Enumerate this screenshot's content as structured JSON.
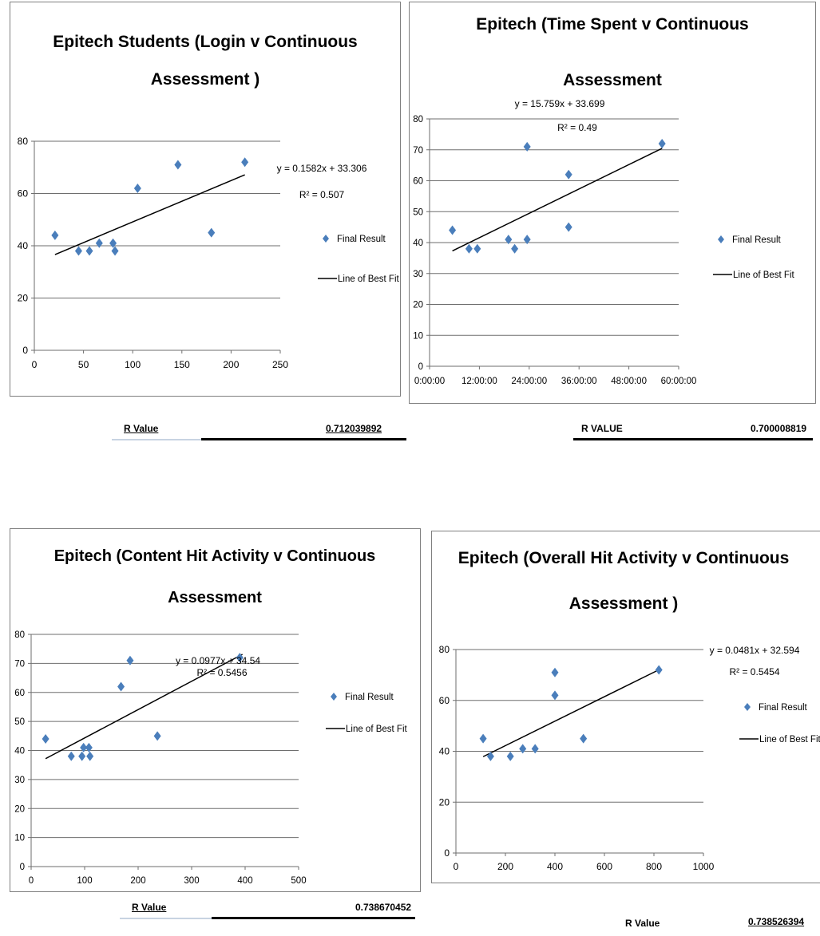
{
  "colors": {
    "marker": "#4a7ebb",
    "line": "#000000",
    "grid": "#6e6e6e"
  },
  "chart_data": [
    {
      "type": "scatter",
      "title": [
        "Epitech Students (Login v  Continuous",
        "Assessment )"
      ],
      "xlim": [
        0,
        250
      ],
      "ylim": [
        0,
        80
      ],
      "x_ticks": [
        0,
        50,
        100,
        150,
        200,
        250
      ],
      "x_tick_labels": [
        "0",
        "50",
        "100",
        "150",
        "200",
        "250"
      ],
      "y_ticks": [
        0,
        20,
        40,
        60,
        80
      ],
      "y_tick_labels": [
        "0",
        "20",
        "40",
        "60",
        "80"
      ],
      "grid": true,
      "series": [
        {
          "name": "Final Result",
          "points": [
            [
              21,
              44
            ],
            [
              45,
              38
            ],
            [
              56,
              38
            ],
            [
              66,
              41
            ],
            [
              80,
              41
            ],
            [
              82,
              38
            ],
            [
              105,
              62
            ],
            [
              146,
              71
            ],
            [
              180,
              45
            ],
            [
              214,
              72
            ]
          ]
        },
        {
          "name": "Line of Best Fit",
          "slope": 0.1582,
          "intercept": 33.306,
          "x_range": [
            21,
            214
          ]
        }
      ],
      "equation": "y = 0.1582x + 33.306",
      "r_squared": "R² = 0.507",
      "r_label": "R Value",
      "r_value": "0.712039892"
    },
    {
      "type": "scatter",
      "title": [
        "Epitech (Time Spent v Continuous",
        "Assessment"
      ],
      "xlim": [
        0,
        60
      ],
      "ylim": [
        0,
        80
      ],
      "x_ticks": [
        0,
        12,
        24,
        36,
        48,
        60
      ],
      "x_tick_labels": [
        "0:00:00",
        "12:00:00",
        "24:00:00",
        "36:00:00",
        "48:00:00",
        "60:00:00"
      ],
      "y_ticks": [
        0,
        10,
        20,
        30,
        40,
        50,
        60,
        70,
        80
      ],
      "y_tick_labels": [
        "0",
        "10",
        "20",
        "30",
        "40",
        "50",
        "60",
        "70",
        "80"
      ],
      "grid": true,
      "series": [
        {
          "name": "Final Result",
          "points": [
            [
              5.5,
              44
            ],
            [
              9.5,
              38
            ],
            [
              11.5,
              38
            ],
            [
              19,
              41
            ],
            [
              20.5,
              38
            ],
            [
              23.5,
              41
            ],
            [
              23.5,
              71
            ],
            [
              33.5,
              62
            ],
            [
              33.5,
              45
            ],
            [
              56,
              72
            ]
          ]
        },
        {
          "name": "Line of Best Fit",
          "slope": 0.6566,
          "intercept": 33.699,
          "x_range": [
            5.5,
            56
          ]
        }
      ],
      "equation": "y = 15.759x + 33.699",
      "r_squared": "R² = 0.49",
      "r_label": "R VALUE",
      "r_value": "0.700008819"
    },
    {
      "type": "scatter",
      "title": [
        "Epitech (Content Hit Activity v  Continuous",
        "Assessment"
      ],
      "xlim": [
        0,
        500
      ],
      "ylim": [
        0,
        80
      ],
      "x_ticks": [
        0,
        100,
        200,
        300,
        400,
        500
      ],
      "x_tick_labels": [
        "0",
        "100",
        "200",
        "300",
        "400",
        "500"
      ],
      "y_ticks": [
        0,
        10,
        20,
        30,
        40,
        50,
        60,
        70,
        80
      ],
      "y_tick_labels": [
        "0",
        "10",
        "20",
        "30",
        "40",
        "50",
        "60",
        "70",
        "80"
      ],
      "grid": true,
      "series": [
        {
          "name": "Final Result",
          "points": [
            [
              27,
              44
            ],
            [
              75,
              38
            ],
            [
              95,
              38
            ],
            [
              98,
              41
            ],
            [
              108,
              41
            ],
            [
              110,
              38
            ],
            [
              168,
              62
            ],
            [
              185,
              71
            ],
            [
              236,
              45
            ],
            [
              390,
              72
            ]
          ]
        },
        {
          "name": "Line of Best Fit",
          "slope": 0.0977,
          "intercept": 34.54,
          "x_range": [
            27,
            395
          ]
        }
      ],
      "equation": "y = 0.0977x + 34.54",
      "r_squared": "R² = 0.5456",
      "r_label": "R Value",
      "r_value": "0.738670452"
    },
    {
      "type": "scatter",
      "title": [
        "Epitech (Overall Hit Activity v  Continuous",
        "Assessment )"
      ],
      "xlim": [
        0,
        1000
      ],
      "ylim": [
        0,
        80
      ],
      "x_ticks": [
        0,
        200,
        400,
        600,
        800,
        1000
      ],
      "x_tick_labels": [
        "0",
        "200",
        "400",
        "600",
        "800",
        "1000"
      ],
      "y_ticks": [
        0,
        20,
        40,
        60,
        80
      ],
      "y_tick_labels": [
        "0",
        "20",
        "40",
        "60",
        "80"
      ],
      "grid": true,
      "series": [
        {
          "name": "Final Result",
          "points": [
            [
              110,
              45
            ],
            [
              140,
              38
            ],
            [
              220,
              38
            ],
            [
              270,
              41
            ],
            [
              320,
              41
            ],
            [
              400,
              71
            ],
            [
              400,
              62
            ],
            [
              515,
              45
            ],
            [
              820,
              72
            ]
          ]
        },
        {
          "name": "Line of Best Fit",
          "slope": 0.0481,
          "intercept": 32.594,
          "x_range": [
            110,
            820
          ]
        }
      ],
      "equation": "y = 0.0481x + 32.594",
      "r_squared": "R² = 0.5454",
      "r_label": "R Value",
      "r_value": "0.738526394"
    }
  ]
}
